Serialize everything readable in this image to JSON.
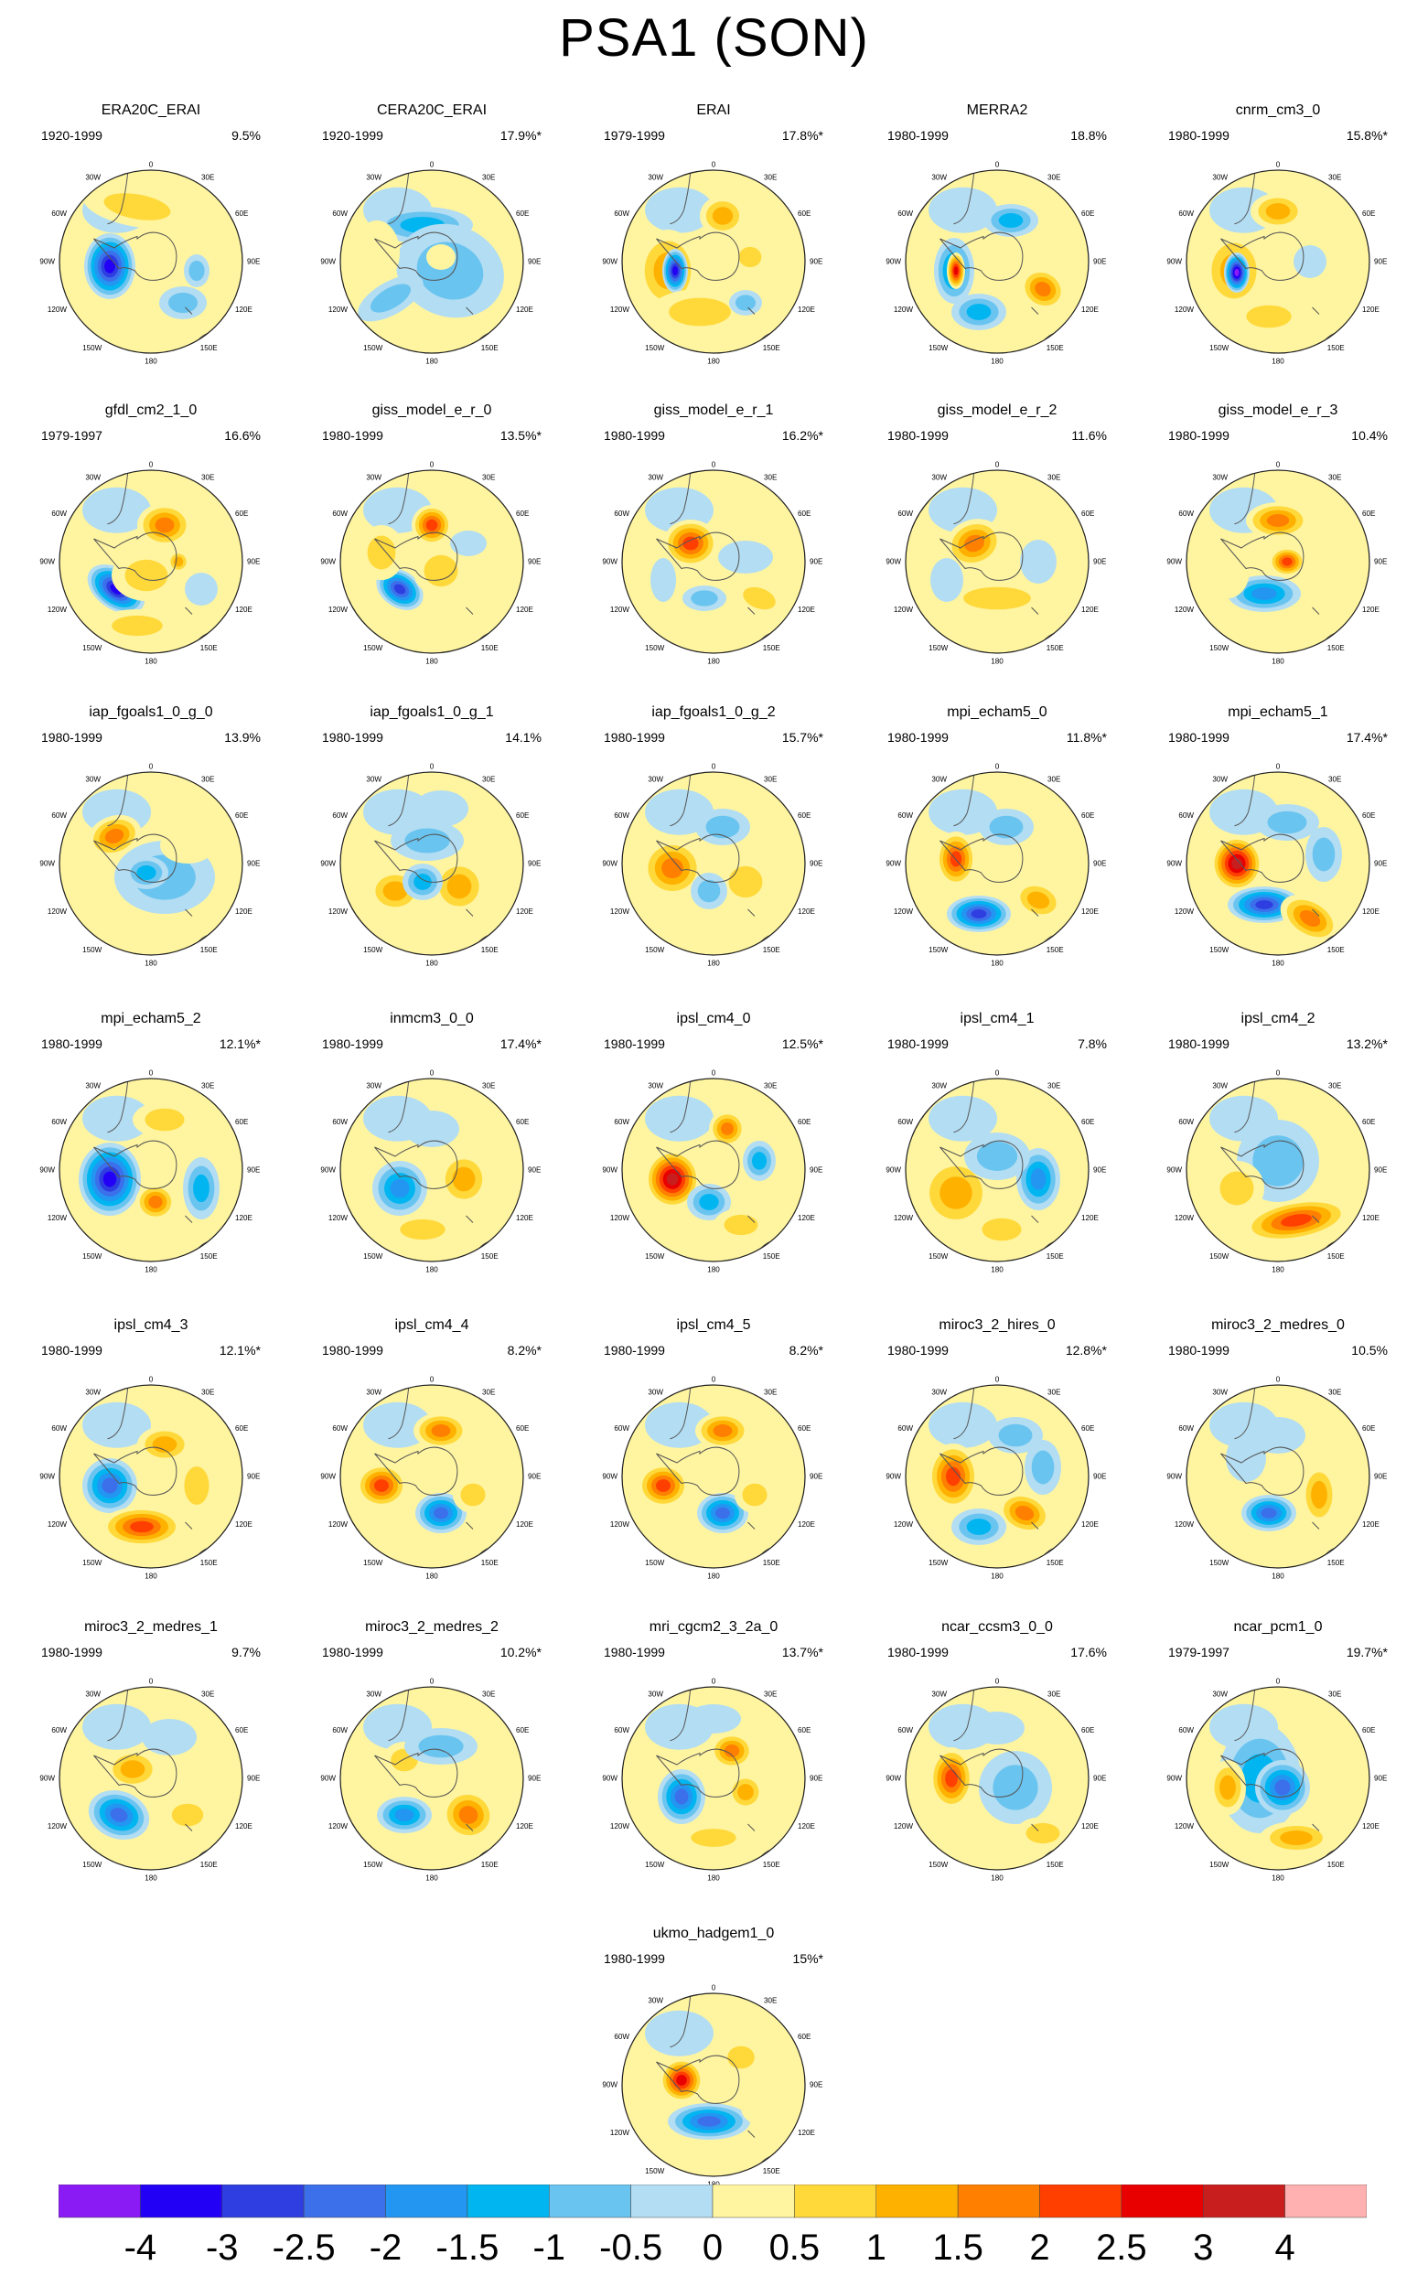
{
  "title": "PSA1 (SON)",
  "lon_labels": {
    "top": "0",
    "tr": "30E",
    "right_upper": "60E",
    "right": "90E",
    "right_lower": "120E",
    "br": "150E",
    "bottom": "180",
    "bl": "150W",
    "left_lower": "120W",
    "left": "90W",
    "left_upper": "60W",
    "tl": "30W"
  },
  "colors": {
    "levels": [
      "#8a1bf5",
      "#2100f5",
      "#2e3ee0",
      "#3c6fea",
      "#2396f2",
      "#00b5f0",
      "#6ac4f0",
      "#b3ddf2",
      "#fff5a0",
      "#ffd83a",
      "#ffb100",
      "#ff7f00",
      "#ff3f00",
      "#e80000",
      "#c81e1e",
      "#ffb0b0"
    ]
  },
  "colorbar": {
    "labels": [
      "-4",
      "-3",
      "-2.5",
      "-2",
      "-1.5",
      "-1",
      "-0.5",
      "0",
      "0.5",
      "1",
      "1.5",
      "2",
      "2.5",
      "3",
      "4"
    ]
  },
  "panels": [
    {
      "name": "ERA20C_ERAI",
      "period": "1920-1999",
      "variance": "9.5%"
    },
    {
      "name": "CERA20C_ERAI",
      "period": "1920-1999",
      "variance": "17.9%*"
    },
    {
      "name": "ERAI",
      "period": "1979-1999",
      "variance": "17.8%*"
    },
    {
      "name": "MERRA2",
      "period": "1980-1999",
      "variance": "18.8%"
    },
    {
      "name": "cnrm_cm3_0",
      "period": "1980-1999",
      "variance": "15.8%*"
    },
    {
      "name": "gfdl_cm2_1_0",
      "period": "1979-1997",
      "variance": "16.6%"
    },
    {
      "name": "giss_model_e_r_0",
      "period": "1980-1999",
      "variance": "13.5%*"
    },
    {
      "name": "giss_model_e_r_1",
      "period": "1980-1999",
      "variance": "16.2%*"
    },
    {
      "name": "giss_model_e_r_2",
      "period": "1980-1999",
      "variance": "11.6%"
    },
    {
      "name": "giss_model_e_r_3",
      "period": "1980-1999",
      "variance": "10.4%"
    },
    {
      "name": "iap_fgoals1_0_g_0",
      "period": "1980-1999",
      "variance": "13.9%"
    },
    {
      "name": "iap_fgoals1_0_g_1",
      "period": "1980-1999",
      "variance": "14.1%"
    },
    {
      "name": "iap_fgoals1_0_g_2",
      "period": "1980-1999",
      "variance": "15.7%*"
    },
    {
      "name": "mpi_echam5_0",
      "period": "1980-1999",
      "variance": "11.8%*"
    },
    {
      "name": "mpi_echam5_1",
      "period": "1980-1999",
      "variance": "17.4%*"
    },
    {
      "name": "mpi_echam5_2",
      "period": "1980-1999",
      "variance": "12.1%*"
    },
    {
      "name": "inmcm3_0_0",
      "period": "1980-1999",
      "variance": "17.4%*"
    },
    {
      "name": "ipsl_cm4_0",
      "period": "1980-1999",
      "variance": "12.5%*"
    },
    {
      "name": "ipsl_cm4_1",
      "period": "1980-1999",
      "variance": "7.8%"
    },
    {
      "name": "ipsl_cm4_2",
      "period": "1980-1999",
      "variance": "13.2%*"
    },
    {
      "name": "ipsl_cm4_3",
      "period": "1980-1999",
      "variance": "12.1%*"
    },
    {
      "name": "ipsl_cm4_4",
      "period": "1980-1999",
      "variance": "8.2%*"
    },
    {
      "name": "ipsl_cm4_5",
      "period": "1980-1999",
      "variance": "8.2%*"
    },
    {
      "name": "miroc3_2_hires_0",
      "period": "1980-1999",
      "variance": "12.8%*"
    },
    {
      "name": "miroc3_2_medres_0",
      "period": "1980-1999",
      "variance": "10.5%"
    },
    {
      "name": "miroc3_2_medres_1",
      "period": "1980-1999",
      "variance": "9.7%"
    },
    {
      "name": "miroc3_2_medres_2",
      "period": "1980-1999",
      "variance": "10.2%*"
    },
    {
      "name": "mri_cgcm2_3_2a_0",
      "period": "1980-1999",
      "variance": "13.7%*"
    },
    {
      "name": "ncar_ccsm3_0_0",
      "period": "1980-1999",
      "variance": "17.6%"
    },
    {
      "name": "ncar_pcm1_0",
      "period": "1979-1997",
      "variance": "19.7%*"
    },
    {
      "name": "ukmo_hadgem1_0",
      "period": "1980-1999",
      "variance": "15%*"
    }
  ]
}
